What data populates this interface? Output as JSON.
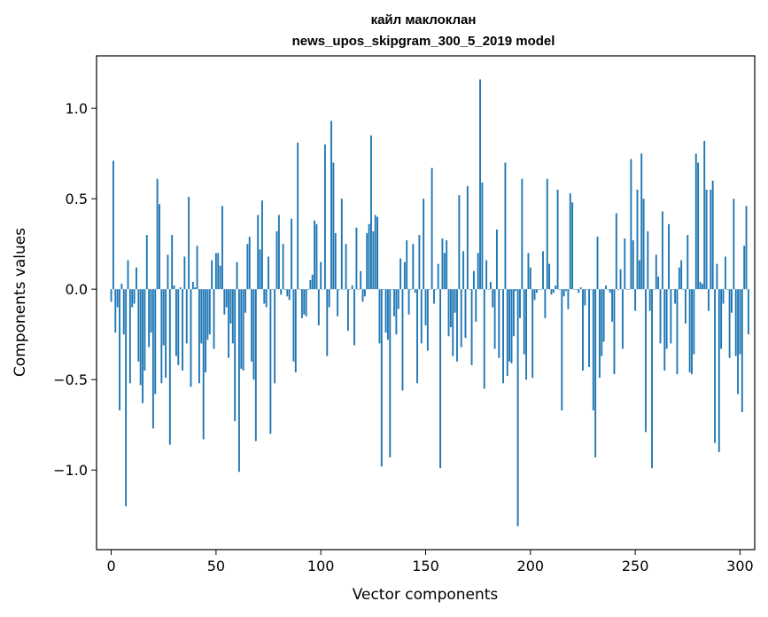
{
  "chart_data": {
    "type": "bar",
    "title_line1": "кайл маклоклан",
    "title_line2": "news_upos_skipgram_300_5_2019 model",
    "xlabel": "Vector components",
    "ylabel": "Components values",
    "xlim": [
      -7,
      307
    ],
    "ylim": [
      -1.44,
      1.29
    ],
    "x_ticks": [
      0,
      50,
      100,
      150,
      200,
      250,
      300
    ],
    "y_ticks": [
      -1.0,
      -0.5,
      0.0,
      0.5,
      1.0
    ],
    "x_tick_labels": [
      "0",
      "50",
      "100",
      "150",
      "200",
      "250",
      "300"
    ],
    "y_tick_labels": [
      "−1.0",
      "−0.5",
      "0.0",
      "0.5",
      "1.0"
    ],
    "bar_color": "#1f77b4",
    "grid": false,
    "values": [
      -0.07,
      0.71,
      -0.24,
      -0.1,
      -0.67,
      0.03,
      -0.25,
      -1.2,
      0.16,
      -0.52,
      -0.1,
      -0.08,
      0.12,
      -0.4,
      -0.53,
      -0.63,
      -0.45,
      0.3,
      -0.32,
      -0.24,
      -0.77,
      -0.58,
      0.61,
      0.47,
      -0.52,
      -0.31,
      -0.49,
      0.19,
      -0.86,
      0.3,
      0.02,
      -0.37,
      -0.42,
      0.01,
      -0.45,
      0.18,
      -0.3,
      0.51,
      -0.54,
      0.04,
      0.01,
      0.24,
      -0.52,
      -0.3,
      -0.83,
      -0.46,
      -0.28,
      -0.25,
      0.16,
      -0.33,
      0.2,
      0.2,
      0.13,
      0.46,
      -0.14,
      -0.1,
      -0.38,
      -0.19,
      -0.3,
      -0.73,
      0.15,
      -1.01,
      -0.44,
      -0.45,
      -0.13,
      0.25,
      0.29,
      -0.4,
      -0.5,
      -0.84,
      0.41,
      0.22,
      0.49,
      -0.08,
      -0.1,
      0.18,
      -0.8,
      0.0,
      -0.52,
      0.32,
      0.41,
      -0.03,
      0.25,
      0.0,
      -0.04,
      -0.06,
      0.39,
      -0.4,
      -0.46,
      0.81,
      0.0,
      -0.16,
      -0.14,
      -0.15,
      0.0,
      0.05,
      0.08,
      0.38,
      0.36,
      -0.2,
      0.15,
      0.0,
      0.8,
      -0.37,
      -0.1,
      0.93,
      0.7,
      0.31,
      -0.15,
      0.0,
      0.5,
      0.0,
      0.25,
      -0.23,
      0.0,
      0.02,
      -0.31,
      0.34,
      0.0,
      0.1,
      -0.07,
      -0.04,
      0.31,
      0.36,
      0.85,
      0.32,
      0.41,
      0.4,
      -0.3,
      -0.98,
      0.0,
      -0.24,
      -0.28,
      -0.93,
      0.0,
      -0.15,
      -0.25,
      -0.11,
      0.17,
      -0.56,
      0.15,
      0.27,
      -0.14,
      0.0,
      0.25,
      -0.02,
      -0.52,
      0.3,
      -0.3,
      0.5,
      -0.2,
      -0.34,
      0.0,
      0.67,
      -0.08,
      0.0,
      0.14,
      -0.99,
      0.28,
      0.2,
      0.27,
      -0.26,
      -0.21,
      -0.37,
      -0.13,
      -0.4,
      0.52,
      -0.32,
      0.21,
      -0.27,
      0.57,
      0.0,
      -0.42,
      0.1,
      -0.18,
      0.2,
      1.16,
      0.59,
      -0.55,
      0.16,
      0.0,
      0.04,
      -0.1,
      -0.33,
      0.33,
      -0.38,
      0.0,
      -0.52,
      0.7,
      -0.48,
      -0.4,
      -0.41,
      -0.26,
      -0.01,
      -1.31,
      -0.16,
      0.61,
      -0.36,
      -0.5,
      0.2,
      0.12,
      -0.49,
      -0.06,
      -0.02,
      0.0,
      0.0,
      0.21,
      -0.16,
      0.61,
      0.14,
      -0.03,
      -0.02,
      0.02,
      0.55,
      0.0,
      -0.67,
      -0.04,
      -0.01,
      -0.11,
      0.53,
      0.48,
      0.0,
      0.0,
      -0.02,
      0.01,
      -0.45,
      -0.09,
      0.0,
      -0.43,
      0.0,
      -0.67,
      -0.93,
      0.29,
      -0.49,
      -0.37,
      -0.29,
      0.02,
      0.0,
      -0.02,
      -0.18,
      -0.47,
      0.42,
      0.0,
      0.11,
      -0.33,
      0.28,
      0.0,
      0.0,
      0.72,
      0.27,
      -0.12,
      0.55,
      0.16,
      0.75,
      0.5,
      -0.79,
      0.32,
      -0.12,
      -0.99,
      0.0,
      0.19,
      0.07,
      -0.3,
      0.43,
      -0.45,
      -0.33,
      0.36,
      -0.3,
      0.0,
      -0.08,
      -0.47,
      0.12,
      0.16,
      0.0,
      -0.19,
      0.3,
      -0.46,
      -0.47,
      -0.36,
      0.75,
      0.7,
      0.04,
      0.03,
      0.82,
      0.55,
      -0.12,
      0.55,
      0.6,
      -0.85,
      0.14,
      -0.9,
      -0.33,
      -0.08,
      0.18,
      0.0,
      -0.38,
      -0.13,
      0.5,
      -0.37,
      -0.58,
      -0.36,
      -0.68,
      0.24,
      0.46,
      -0.25
    ]
  }
}
